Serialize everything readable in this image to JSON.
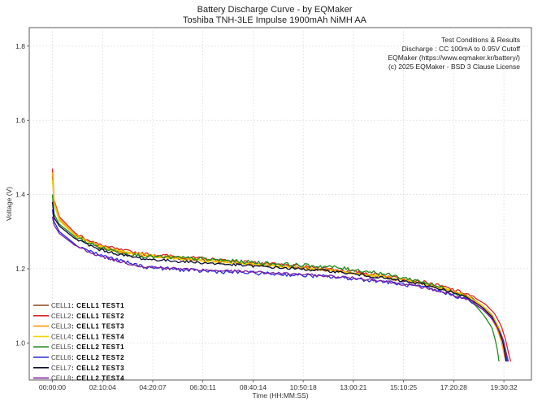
{
  "chart_data": {
    "type": "line",
    "title": "Battery Discharge Curve - by EQMaker",
    "subtitle": "Toshiba TNH-3LE Impulse 1900mAh NiMH AA",
    "xlabel": "Time (HH:MM:SS)",
    "ylabel": "Voltage (V)",
    "xlim": [
      -1.0,
      20.7
    ],
    "ylim": [
      0.9,
      1.85
    ],
    "x_unit": "hours",
    "grid": true,
    "x_ticks": [
      0,
      2.1678,
      4.3353,
      6.5031,
      8.6706,
      10.8383,
      13.0058,
      15.1736,
      17.3411,
      19.5089
    ],
    "x_tick_labels": [
      "00:00:00",
      "02:10:04",
      "04:20:07",
      "06:30:11",
      "08:40:14",
      "10:50:18",
      "13:00:21",
      "15:10:25",
      "17:20:28",
      "19:30:32"
    ],
    "y_ticks": [
      1.0,
      1.2,
      1.4,
      1.6,
      1.8
    ],
    "y_tick_labels": [
      "1.0",
      "1.2",
      "1.4",
      "1.6",
      "1.8"
    ],
    "annotation": [
      "Test Conditions & Results",
      "Discharge : CC 100mA to 0.95V Cutoff",
      "EQMaker (https://www.eqmaker.kr/battery/)",
      "(c) 2025 EQMaker - BSD 3 Clause License"
    ],
    "legend_position": "lower-left",
    "series": [
      {
        "cell": "CELL1",
        "name": "CELL1 TEST1",
        "color": "#8B4513",
        "noise": 0.004,
        "x": [
          0,
          0.05,
          0.3,
          1,
          2,
          3,
          4,
          6,
          8,
          10,
          12,
          14,
          16,
          17,
          18,
          18.6,
          19,
          19.3,
          19.5,
          19.62,
          19.7
        ],
        "y": [
          1.45,
          1.38,
          1.33,
          1.29,
          1.26,
          1.245,
          1.235,
          1.225,
          1.215,
          1.205,
          1.195,
          1.18,
          1.16,
          1.145,
          1.125,
          1.1,
          1.075,
          1.04,
          1.005,
          0.97,
          0.95
        ]
      },
      {
        "cell": "CELL2",
        "name": "CELL1 TEST2",
        "color": "#D62728",
        "noise": 0.004,
        "x": [
          0,
          0.05,
          0.3,
          1,
          2,
          3,
          4,
          6,
          8,
          10,
          12,
          14,
          16,
          17,
          18,
          18.7,
          19.1,
          19.4,
          19.6,
          19.7,
          19.8
        ],
        "y": [
          1.47,
          1.39,
          1.34,
          1.295,
          1.265,
          1.25,
          1.24,
          1.23,
          1.22,
          1.21,
          1.2,
          1.185,
          1.165,
          1.15,
          1.13,
          1.105,
          1.08,
          1.045,
          1.005,
          0.975,
          0.95
        ]
      },
      {
        "cell": "CELL3",
        "name": "CELL1 TEST3",
        "color": "#FF9900",
        "noise": 0.004,
        "x": [
          0,
          0.05,
          0.3,
          1,
          2,
          3,
          4,
          6,
          8,
          10,
          12,
          14,
          16,
          17,
          18,
          18.5,
          18.9,
          19.2,
          19.4,
          19.5,
          19.6
        ],
        "y": [
          1.46,
          1.385,
          1.335,
          1.29,
          1.262,
          1.247,
          1.237,
          1.227,
          1.217,
          1.207,
          1.197,
          1.182,
          1.162,
          1.147,
          1.125,
          1.1,
          1.075,
          1.04,
          1.005,
          0.975,
          0.95
        ]
      },
      {
        "cell": "CELL4",
        "name": "CELL1 TEST4",
        "color": "#F2D600",
        "noise": 0.004,
        "x": [
          0,
          0.05,
          0.3,
          1,
          2,
          3,
          4,
          6,
          8,
          10,
          12,
          14,
          16,
          17,
          18,
          18.6,
          19,
          19.3,
          19.5,
          19.6,
          19.7
        ],
        "y": [
          1.44,
          1.38,
          1.33,
          1.288,
          1.26,
          1.245,
          1.235,
          1.225,
          1.215,
          1.205,
          1.195,
          1.18,
          1.16,
          1.145,
          1.123,
          1.1,
          1.073,
          1.04,
          1.005,
          0.975,
          0.95
        ]
      },
      {
        "cell": "CELL5",
        "name": "CELL2 TEST1",
        "color": "#1F8B1F",
        "noise": 0.005,
        "x": [
          0,
          0.05,
          0.3,
          1,
          2,
          3,
          4,
          6,
          8,
          10,
          12,
          14,
          16,
          17,
          17.8,
          18.3,
          18.7,
          19,
          19.15,
          19.25,
          19.3
        ],
        "y": [
          1.4,
          1.35,
          1.32,
          1.285,
          1.258,
          1.243,
          1.233,
          1.228,
          1.22,
          1.212,
          1.205,
          1.19,
          1.165,
          1.145,
          1.125,
          1.1,
          1.07,
          1.04,
          1.005,
          0.975,
          0.95
        ]
      },
      {
        "cell": "CELL6",
        "name": "CELL2 TEST2",
        "color": "#2B2BD9",
        "noise": 0.005,
        "x": [
          0,
          0.05,
          0.3,
          1,
          2,
          3,
          4,
          6,
          8,
          10,
          12,
          14,
          16,
          17,
          18,
          18.6,
          19,
          19.3,
          19.5,
          19.6,
          19.65
        ],
        "y": [
          1.36,
          1.33,
          1.3,
          1.265,
          1.238,
          1.22,
          1.205,
          1.195,
          1.19,
          1.185,
          1.178,
          1.168,
          1.15,
          1.135,
          1.115,
          1.09,
          1.065,
          1.035,
          1.005,
          0.975,
          0.95
        ]
      },
      {
        "cell": "CELL7",
        "name": "CELL2 TEST3",
        "color": "#0B0B33",
        "noise": 0.0035,
        "x": [
          0,
          0.05,
          0.3,
          1,
          2,
          3,
          4,
          6,
          8,
          10,
          12,
          14,
          16,
          17,
          18,
          18.6,
          19,
          19.25,
          19.45,
          19.55,
          19.6
        ],
        "y": [
          1.38,
          1.34,
          1.315,
          1.28,
          1.252,
          1.237,
          1.226,
          1.218,
          1.21,
          1.202,
          1.194,
          1.178,
          1.158,
          1.142,
          1.12,
          1.095,
          1.07,
          1.04,
          1.005,
          0.975,
          0.95
        ]
      },
      {
        "cell": "CELL8",
        "name": "CELL2 TEST4",
        "color": "#7B1FA2",
        "noise": 0.0035,
        "x": [
          0,
          0.05,
          0.3,
          1,
          2,
          3,
          4,
          6,
          8,
          10,
          12,
          14,
          16,
          17,
          18,
          18.6,
          19,
          19.3,
          19.5,
          19.6,
          19.7
        ],
        "y": [
          1.34,
          1.32,
          1.295,
          1.262,
          1.235,
          1.218,
          1.205,
          1.198,
          1.193,
          1.187,
          1.18,
          1.17,
          1.15,
          1.135,
          1.115,
          1.09,
          1.065,
          1.035,
          1.005,
          0.975,
          0.95
        ]
      }
    ]
  }
}
